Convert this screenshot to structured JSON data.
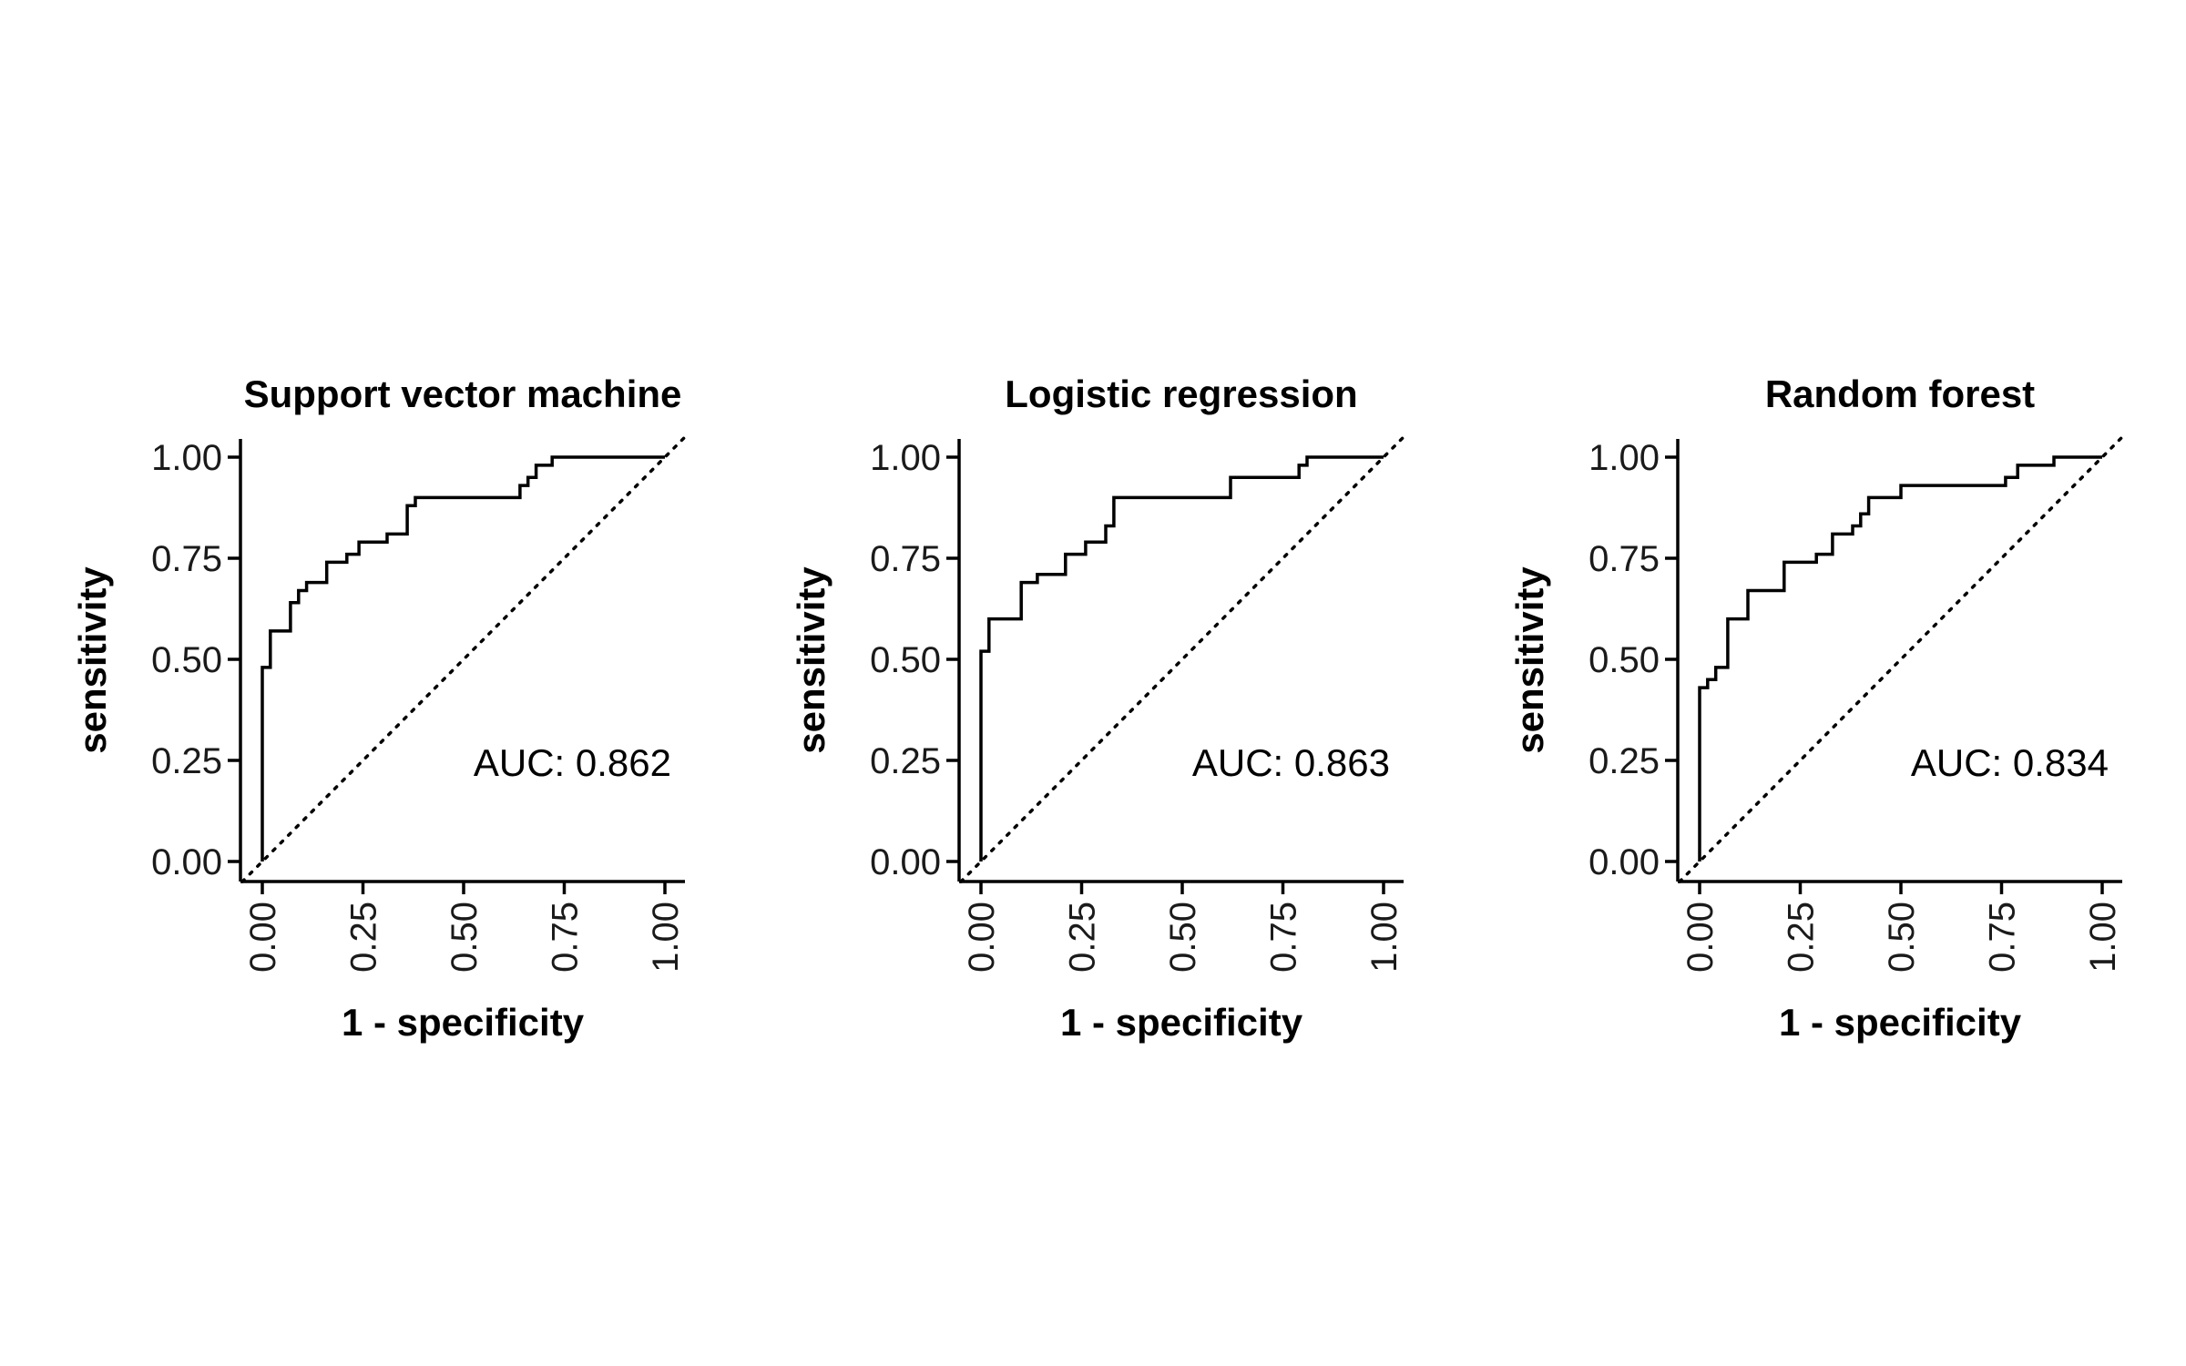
{
  "chart_data": [
    {
      "type": "line",
      "title": "Support vector machine",
      "xlabel": "1 - specificity",
      "ylabel": "sensitivity",
      "xlim": [
        0,
        1
      ],
      "ylim": [
        0,
        1
      ],
      "xticks": [
        "0.00",
        "0.25",
        "0.50",
        "0.75",
        "1.00"
      ],
      "yticks": [
        "0.00",
        "0.25",
        "0.50",
        "0.75",
        "1.00"
      ],
      "annotation": "AUC: 0.862",
      "grid": false,
      "diagonal_reference": true,
      "x": [
        0,
        0,
        0.02,
        0.02,
        0.07,
        0.07,
        0.09,
        0.09,
        0.11,
        0.11,
        0.16,
        0.16,
        0.21,
        0.21,
        0.24,
        0.24,
        0.31,
        0.31,
        0.36,
        0.36,
        0.38,
        0.38,
        0.64,
        0.64,
        0.66,
        0.66,
        0.68,
        0.68,
        0.7,
        0.7,
        0.72,
        0.72,
        1.0
      ],
      "y": [
        0,
        0.48,
        0.48,
        0.57,
        0.57,
        0.64,
        0.64,
        0.67,
        0.67,
        0.69,
        0.69,
        0.74,
        0.74,
        0.76,
        0.76,
        0.79,
        0.79,
        0.81,
        0.81,
        0.88,
        0.88,
        0.9,
        0.9,
        0.93,
        0.93,
        0.95,
        0.95,
        0.98,
        0.98,
        0.98,
        0.98,
        1.0,
        1.0
      ]
    },
    {
      "type": "line",
      "title": "Logistic regression",
      "xlabel": "1 - specificity",
      "ylabel": "sensitivity",
      "xlim": [
        0,
        1
      ],
      "ylim": [
        0,
        1
      ],
      "xticks": [
        "0.00",
        "0.25",
        "0.50",
        "0.75",
        "1.00"
      ],
      "yticks": [
        "0.00",
        "0.25",
        "0.50",
        "0.75",
        "1.00"
      ],
      "annotation": "AUC: 0.863",
      "grid": false,
      "diagonal_reference": true,
      "x": [
        0,
        0,
        0.02,
        0.02,
        0.1,
        0.1,
        0.14,
        0.14,
        0.21,
        0.21,
        0.26,
        0.26,
        0.31,
        0.31,
        0.33,
        0.33,
        0.62,
        0.62,
        0.79,
        0.79,
        0.81,
        0.81,
        1.0
      ],
      "y": [
        0,
        0.52,
        0.52,
        0.6,
        0.6,
        0.69,
        0.69,
        0.71,
        0.71,
        0.76,
        0.76,
        0.79,
        0.79,
        0.83,
        0.83,
        0.9,
        0.9,
        0.95,
        0.95,
        0.98,
        0.98,
        1.0,
        1.0
      ]
    },
    {
      "type": "line",
      "title": "Random forest",
      "xlabel": "1 - specificity",
      "ylabel": "sensitivity",
      "xlim": [
        0,
        1
      ],
      "ylim": [
        0,
        1
      ],
      "xticks": [
        "0.00",
        "0.25",
        "0.50",
        "0.75",
        "1.00"
      ],
      "yticks": [
        "0.00",
        "0.25",
        "0.50",
        "0.75",
        "1.00"
      ],
      "annotation": "AUC: 0.834",
      "grid": false,
      "diagonal_reference": true,
      "x": [
        0,
        0,
        0.02,
        0.02,
        0.04,
        0.04,
        0.07,
        0.07,
        0.12,
        0.12,
        0.21,
        0.21,
        0.29,
        0.29,
        0.33,
        0.33,
        0.38,
        0.38,
        0.4,
        0.4,
        0.42,
        0.42,
        0.5,
        0.5,
        0.76,
        0.76,
        0.79,
        0.79,
        0.88,
        0.88,
        1.0
      ],
      "y": [
        0,
        0.43,
        0.43,
        0.45,
        0.45,
        0.48,
        0.48,
        0.6,
        0.6,
        0.67,
        0.67,
        0.74,
        0.74,
        0.76,
        0.76,
        0.81,
        0.81,
        0.83,
        0.83,
        0.86,
        0.86,
        0.9,
        0.9,
        0.93,
        0.93,
        0.95,
        0.95,
        0.98,
        0.98,
        1.0,
        1.0
      ]
    }
  ]
}
